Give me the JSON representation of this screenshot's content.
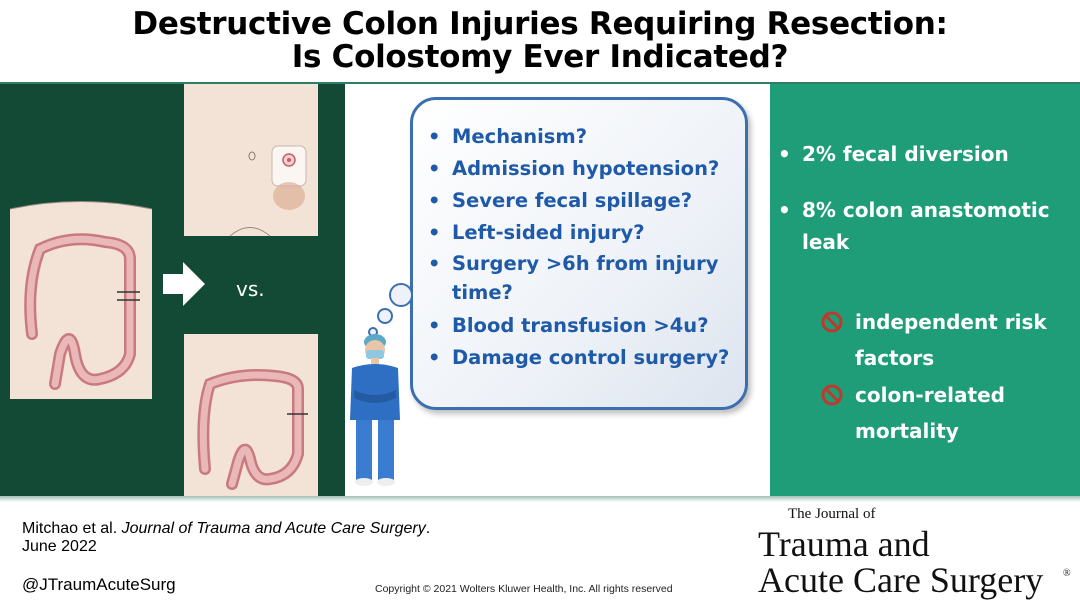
{
  "title": {
    "line1": "Destructive Colon Injuries Requiring Resection:",
    "line2": "Is Colostomy Ever Indicated?"
  },
  "left_panel": {
    "vs_label": "vs.",
    "icons": [
      "colon-anatomy-icon",
      "colostomy-stoma-icon",
      "arrow-right-icon",
      "colon-anastomosis-icon"
    ]
  },
  "questions": [
    "Mechanism?",
    "Admission hypotension?",
    "Severe fecal spillage?",
    "Left-sided injury?",
    "Surgery >6h from injury time?",
    "Blood transfusion >4u?",
    "Damage control surgery?"
  ],
  "results": {
    "item1": "2% fecal diversion",
    "item2": "8% colon anastomotic leak",
    "no1": "independent risk factors",
    "no2": "colon-related mortality"
  },
  "footer": {
    "authors": "Mitchao et al.",
    "journal_ref": "Journal of Trauma and Acute Care Surgery",
    "period": ".",
    "date": "June 2022",
    "handle": "@JTraumAcuteSurg",
    "copyright": "Copyright © 2021  Wolters Kluwer Health, Inc. All rights reserved"
  },
  "logo": {
    "the_journal": "The Journal of",
    "line1": "Trauma and",
    "line2": "Acute Care Surgery",
    "reg": "®"
  },
  "colors": {
    "left_band": "#124a36",
    "right_band": "#1f9d78",
    "question_text": "#1f5aa8",
    "no_symbol": "#c0392b"
  }
}
